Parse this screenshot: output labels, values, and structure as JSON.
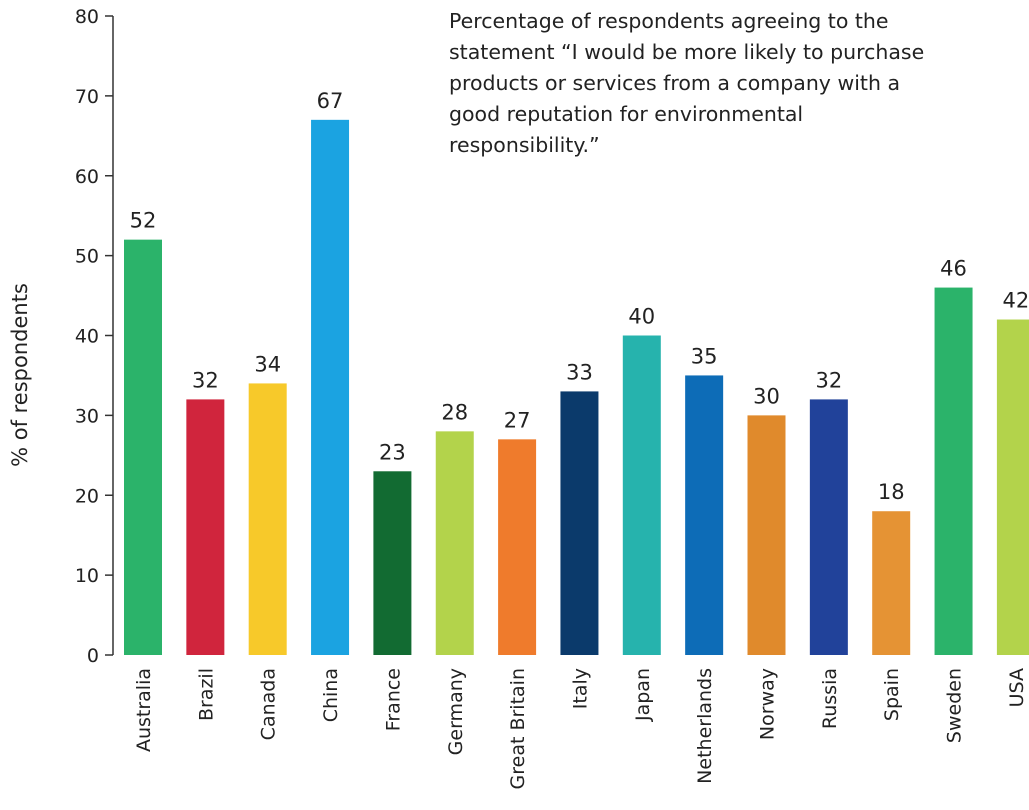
{
  "chart_data": {
    "type": "bar",
    "title_lines": [
      "Percentage of respondents agreeing to the",
      "statement “I would be more likely to purchase",
      "products or services from a company with a",
      "good reputation for environmental",
      "responsibility.”"
    ],
    "xlabel": "",
    "ylabel": "% of respondents",
    "ylim": [
      0,
      80
    ],
    "yticks": [
      0,
      10,
      20,
      30,
      40,
      50,
      60,
      70,
      80
    ],
    "grid": false,
    "legend": "none",
    "categories": [
      "Australia",
      "Brazil",
      "Canada",
      "China",
      "France",
      "Germany",
      "Great Britain",
      "Italy",
      "Japan",
      "Netherlands",
      "Norway",
      "Russia",
      "Spain",
      "Sweden",
      "USA"
    ],
    "values": [
      52,
      32,
      34,
      67,
      23,
      28,
      27,
      33,
      40,
      35,
      30,
      32,
      18,
      46,
      42
    ],
    "colors": [
      "#2bb36a",
      "#d0253d",
      "#f7c92a",
      "#1ba3e1",
      "#126b32",
      "#b3d34b",
      "#ef7b2c",
      "#0b3a6b",
      "#26b3ad",
      "#0d6cb7",
      "#e08a2c",
      "#21429a",
      "#e59334",
      "#2bb36a",
      "#b3d34b"
    ]
  }
}
